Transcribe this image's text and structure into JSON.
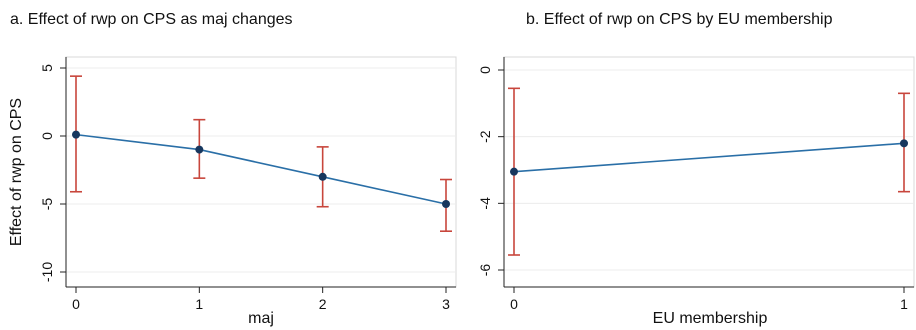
{
  "chart_data": [
    {
      "type": "line",
      "title": "a. Effect of rwp on CPS as maj changes",
      "xlabel": "maj",
      "ylabel": "Effect of rwp on CPS",
      "x": [
        0,
        1,
        2,
        3
      ],
      "x_ticks": [
        "0",
        "1",
        "2",
        "3"
      ],
      "xlim": [
        0,
        3
      ],
      "ylim": [
        -10,
        5
      ],
      "y_ticks": [
        "5",
        "0",
        "-5",
        "-10"
      ],
      "y_tick_values": [
        5,
        0,
        -5,
        -10
      ],
      "grid": true,
      "series": [
        {
          "values": [
            0.1,
            -1.0,
            -3.0,
            -5.0
          ],
          "ci_low": [
            -4.1,
            -3.1,
            -5.2,
            -7.0
          ],
          "ci_high": [
            4.4,
            1.2,
            -0.8,
            -3.2
          ]
        }
      ],
      "colors": {
        "line": "#2a6fa7",
        "marker": "#17375e",
        "ci": "#c8463c",
        "grid": "#ececec"
      }
    },
    {
      "type": "line",
      "title": "b. Effect of rwp on CPS by EU membership",
      "xlabel": "EU membership",
      "ylabel": "",
      "x": [
        0,
        1
      ],
      "x_ticks": [
        "0",
        "1"
      ],
      "xlim": [
        0,
        1
      ],
      "ylim": [
        -6,
        0
      ],
      "y_ticks": [
        "0",
        "-2",
        "-4",
        "-6"
      ],
      "y_tick_values": [
        0,
        -2,
        -4,
        -6
      ],
      "grid": true,
      "series": [
        {
          "values": [
            -3.05,
            -2.2
          ],
          "ci_low": [
            -5.55,
            -3.65
          ],
          "ci_high": [
            -0.55,
            -0.7
          ]
        }
      ],
      "colors": {
        "line": "#2a6fa7",
        "marker": "#17375e",
        "ci": "#c8463c",
        "grid": "#ececec"
      }
    }
  ]
}
